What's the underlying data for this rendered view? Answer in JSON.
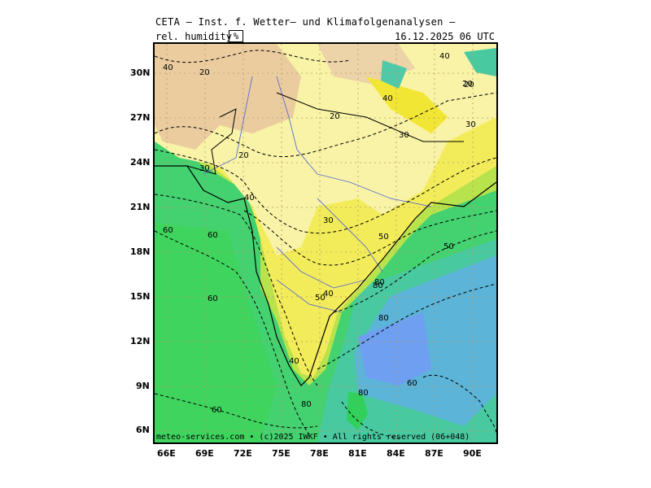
{
  "header": {
    "title": "CETA — Inst. f. Wetter— und Klimafolgenanalysen —",
    "variable": "rel. humidity",
    "unit": "%",
    "valid_time": "16.12.2025 06 UTC"
  },
  "footer": {
    "credit": "meteo-services.com • (c)2025 IWKF • All rights reserved (06+048)"
  },
  "axes": {
    "lat_labels": [
      "30N",
      "27N",
      "24N",
      "21N",
      "18N",
      "15N",
      "12N",
      "9N",
      "6N"
    ],
    "lon_labels": [
      "66E",
      "69E",
      "72E",
      "75E",
      "78E",
      "81E",
      "84E",
      "87E",
      "90E"
    ]
  },
  "contour_labels": [
    "40",
    "20",
    "20",
    "20",
    "30",
    "20",
    "40",
    "30",
    "50",
    "30",
    "50",
    "60",
    "50",
    "40",
    "60",
    "80",
    "60",
    "40",
    "80",
    "60",
    "80",
    "80",
    "60",
    "80",
    "40",
    "40",
    "20",
    "30"
  ],
  "colors": {
    "dry_tan": "#e8c9a0",
    "light_yellow": "#f5f08a",
    "yellow": "#f2ea3c",
    "yellow_green": "#c8e64a",
    "green": "#55d96a",
    "bright_green": "#2fd15a",
    "teal": "#4fc9a8",
    "blue_teal": "#5bb3d6",
    "blue": "#6b9cf0",
    "river": "#5a6fd0",
    "grid": "#b89a6a"
  }
}
